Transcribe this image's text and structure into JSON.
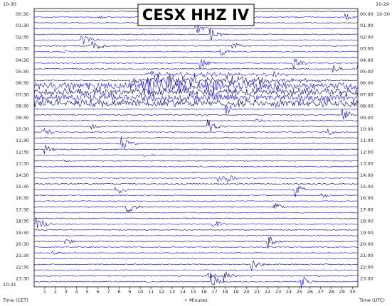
{
  "header": {
    "title": "CESX HHZ IV",
    "date_top_left": "10-30",
    "date_top_right": "10-29",
    "date_right_start": "10-30",
    "date_bottom_left": "10-31"
  },
  "left_labels": [
    "00:30",
    "01:30",
    "02:30",
    "03:30",
    "04:30",
    "05:30",
    "06:30",
    "07:30",
    "08:30",
    "09:30",
    "10:30",
    "11:30",
    "12:30",
    "13:30",
    "14:30",
    "15:30",
    "16:30",
    "17:30",
    "18:30",
    "19:30",
    "20:30",
    "21:30",
    "22:30",
    "23:30"
  ],
  "right_labels": [
    "00:00",
    "01:00",
    "02:00",
    "03:00",
    "04:00",
    "05:00",
    "06:00",
    "07:00",
    "08:00",
    "09:00",
    "10:00",
    "11:00",
    "12:00",
    "13:00",
    "14:00",
    "15:00",
    "16:00",
    "17:00",
    "18:00",
    "19:00",
    "20:00",
    "21:00",
    "22:00",
    "23:00"
  ],
  "minute_ticks": [
    1,
    2,
    3,
    4,
    5,
    6,
    7,
    8,
    9,
    10,
    11,
    12,
    13,
    14,
    15,
    16,
    17,
    18,
    19,
    20,
    21,
    22,
    23,
    24,
    25,
    26,
    27,
    28,
    29,
    30
  ],
  "footer": {
    "left": "Time (CET)",
    "center": "+ Minutes",
    "right": "Time (UTC)"
  }
}
